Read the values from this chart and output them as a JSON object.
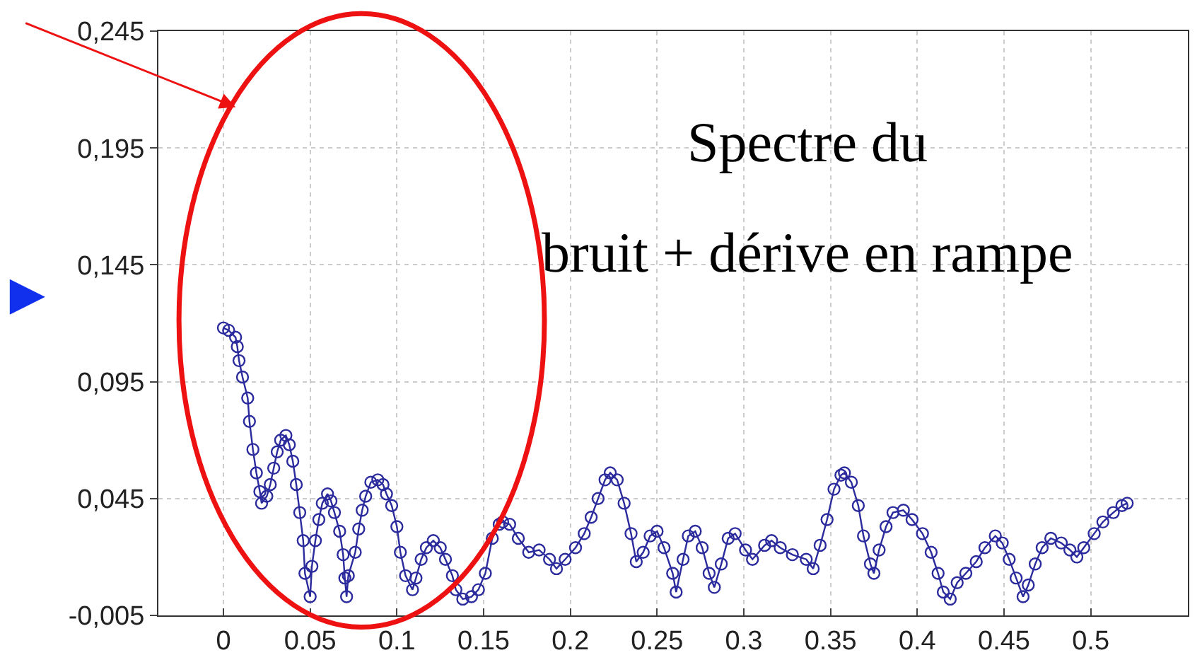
{
  "chart_data": {
    "type": "line",
    "x": [
      0.0,
      0.003,
      0.007,
      0.008,
      0.009,
      0.011,
      0.014,
      0.015,
      0.017,
      0.019,
      0.021,
      0.022,
      0.025,
      0.027,
      0.029,
      0.031,
      0.033,
      0.036,
      0.038,
      0.04,
      0.042,
      0.044,
      0.046,
      0.047,
      0.05,
      0.051,
      0.053,
      0.055,
      0.057,
      0.06,
      0.062,
      0.064,
      0.067,
      0.069,
      0.07,
      0.071,
      0.072,
      0.076,
      0.078,
      0.08,
      0.082,
      0.085,
      0.089,
      0.092,
      0.094,
      0.097,
      0.1,
      0.102,
      0.105,
      0.109,
      0.111,
      0.114,
      0.117,
      0.121,
      0.125,
      0.128,
      0.132,
      0.134,
      0.138,
      0.143,
      0.147,
      0.151,
      0.155,
      0.159,
      0.161,
      0.165,
      0.17,
      0.176,
      0.182,
      0.188,
      0.192,
      0.197,
      0.203,
      0.208,
      0.212,
      0.216,
      0.22,
      0.223,
      0.227,
      0.231,
      0.235,
      0.238,
      0.242,
      0.246,
      0.25,
      0.254,
      0.259,
      0.261,
      0.265,
      0.268,
      0.272,
      0.276,
      0.28,
      0.283,
      0.287,
      0.291,
      0.295,
      0.301,
      0.305,
      0.312,
      0.316,
      0.321,
      0.328,
      0.336,
      0.34,
      0.344,
      0.348,
      0.352,
      0.356,
      0.358,
      0.362,
      0.366,
      0.369,
      0.373,
      0.375,
      0.378,
      0.382,
      0.386,
      0.392,
      0.397,
      0.403,
      0.408,
      0.412,
      0.415,
      0.419,
      0.423,
      0.428,
      0.434,
      0.439,
      0.445,
      0.449,
      0.453,
      0.457,
      0.461,
      0.464,
      0.468,
      0.472,
      0.477,
      0.483,
      0.488,
      0.492,
      0.496,
      0.502,
      0.507,
      0.513,
      0.518,
      0.521
    ],
    "series": [
      {
        "color": "#2b2b9e",
        "values": [
          0.118,
          0.117,
          0.114,
          0.11,
          0.104,
          0.097,
          0.088,
          0.078,
          0.066,
          0.056,
          0.048,
          0.043,
          0.046,
          0.051,
          0.058,
          0.065,
          0.07,
          0.072,
          0.068,
          0.061,
          0.051,
          0.039,
          0.027,
          0.013,
          0.003,
          0.016,
          0.027,
          0.036,
          0.043,
          0.047,
          0.044,
          0.039,
          0.031,
          0.021,
          0.011,
          0.003,
          0.012,
          0.022,
          0.032,
          0.04,
          0.046,
          0.052,
          0.053,
          0.051,
          0.047,
          0.042,
          0.033,
          0.022,
          0.012,
          0.006,
          0.011,
          0.019,
          0.024,
          0.027,
          0.024,
          0.019,
          0.012,
          0.006,
          0.002,
          0.003,
          0.006,
          0.013,
          0.028,
          0.034,
          0.035,
          0.034,
          0.028,
          0.022,
          0.023,
          0.019,
          0.015,
          0.019,
          0.024,
          0.03,
          0.037,
          0.045,
          0.053,
          0.056,
          0.053,
          0.043,
          0.03,
          0.018,
          0.022,
          0.029,
          0.031,
          0.024,
          0.013,
          0.005,
          0.019,
          0.029,
          0.031,
          0.024,
          0.013,
          0.007,
          0.017,
          0.028,
          0.03,
          0.023,
          0.019,
          0.025,
          0.027,
          0.024,
          0.021,
          0.019,
          0.015,
          0.025,
          0.036,
          0.049,
          0.055,
          0.056,
          0.052,
          0.042,
          0.029,
          0.017,
          0.013,
          0.023,
          0.033,
          0.039,
          0.04,
          0.036,
          0.03,
          0.022,
          0.013,
          0.005,
          0.002,
          0.009,
          0.013,
          0.018,
          0.024,
          0.029,
          0.026,
          0.019,
          0.011,
          0.003,
          0.008,
          0.017,
          0.024,
          0.028,
          0.026,
          0.023,
          0.02,
          0.024,
          0.03,
          0.035,
          0.039,
          0.042,
          0.043
        ]
      }
    ],
    "xlim": [
      -0.0375,
      0.556
    ],
    "xticks": [
      0,
      0.05,
      0.1,
      0.15,
      0.2,
      0.25,
      0.3,
      0.35,
      0.4,
      0.45,
      0.5
    ],
    "ylim": [
      -0.005,
      0.245
    ],
    "yticks": [
      {
        "value": -0.005,
        "label": "-0,005"
      },
      {
        "value": 0.045,
        "label": "0,045"
      },
      {
        "value": 0.095,
        "label": "0,095"
      },
      {
        "value": 0.145,
        "label": "0,145"
      },
      {
        "value": 0.195,
        "label": "0,195"
      },
      {
        "value": 0.245,
        "label": "0,245"
      }
    ],
    "grid": true,
    "marker": "circle",
    "line_style": "solid",
    "annotations": [
      "Spectre du",
      "bruit + dérive en rampe"
    ]
  }
}
